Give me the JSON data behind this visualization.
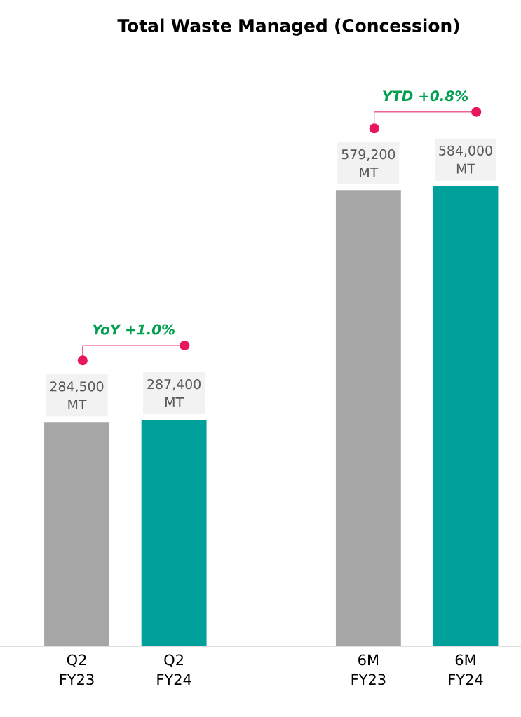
{
  "chart_data": {
    "type": "bar",
    "title": "Total Waste Managed (Concession)",
    "categories": [
      "Q2 FY23",
      "Q2 FY24",
      null,
      "6M FY23",
      "6M FY24"
    ],
    "values": [
      284500,
      287400,
      null,
      579200,
      584000
    ],
    "colors": [
      "#a6a6a6",
      "#00a19a",
      null,
      "#a6a6a6",
      "#00a19a"
    ],
    "value_labels": [
      "284,500 MT",
      "287,400 MT",
      null,
      "579,200 MT",
      "584,000 MT"
    ],
    "annotations": [
      "YoY +1.0%",
      "YTD +0.8%"
    ]
  }
}
